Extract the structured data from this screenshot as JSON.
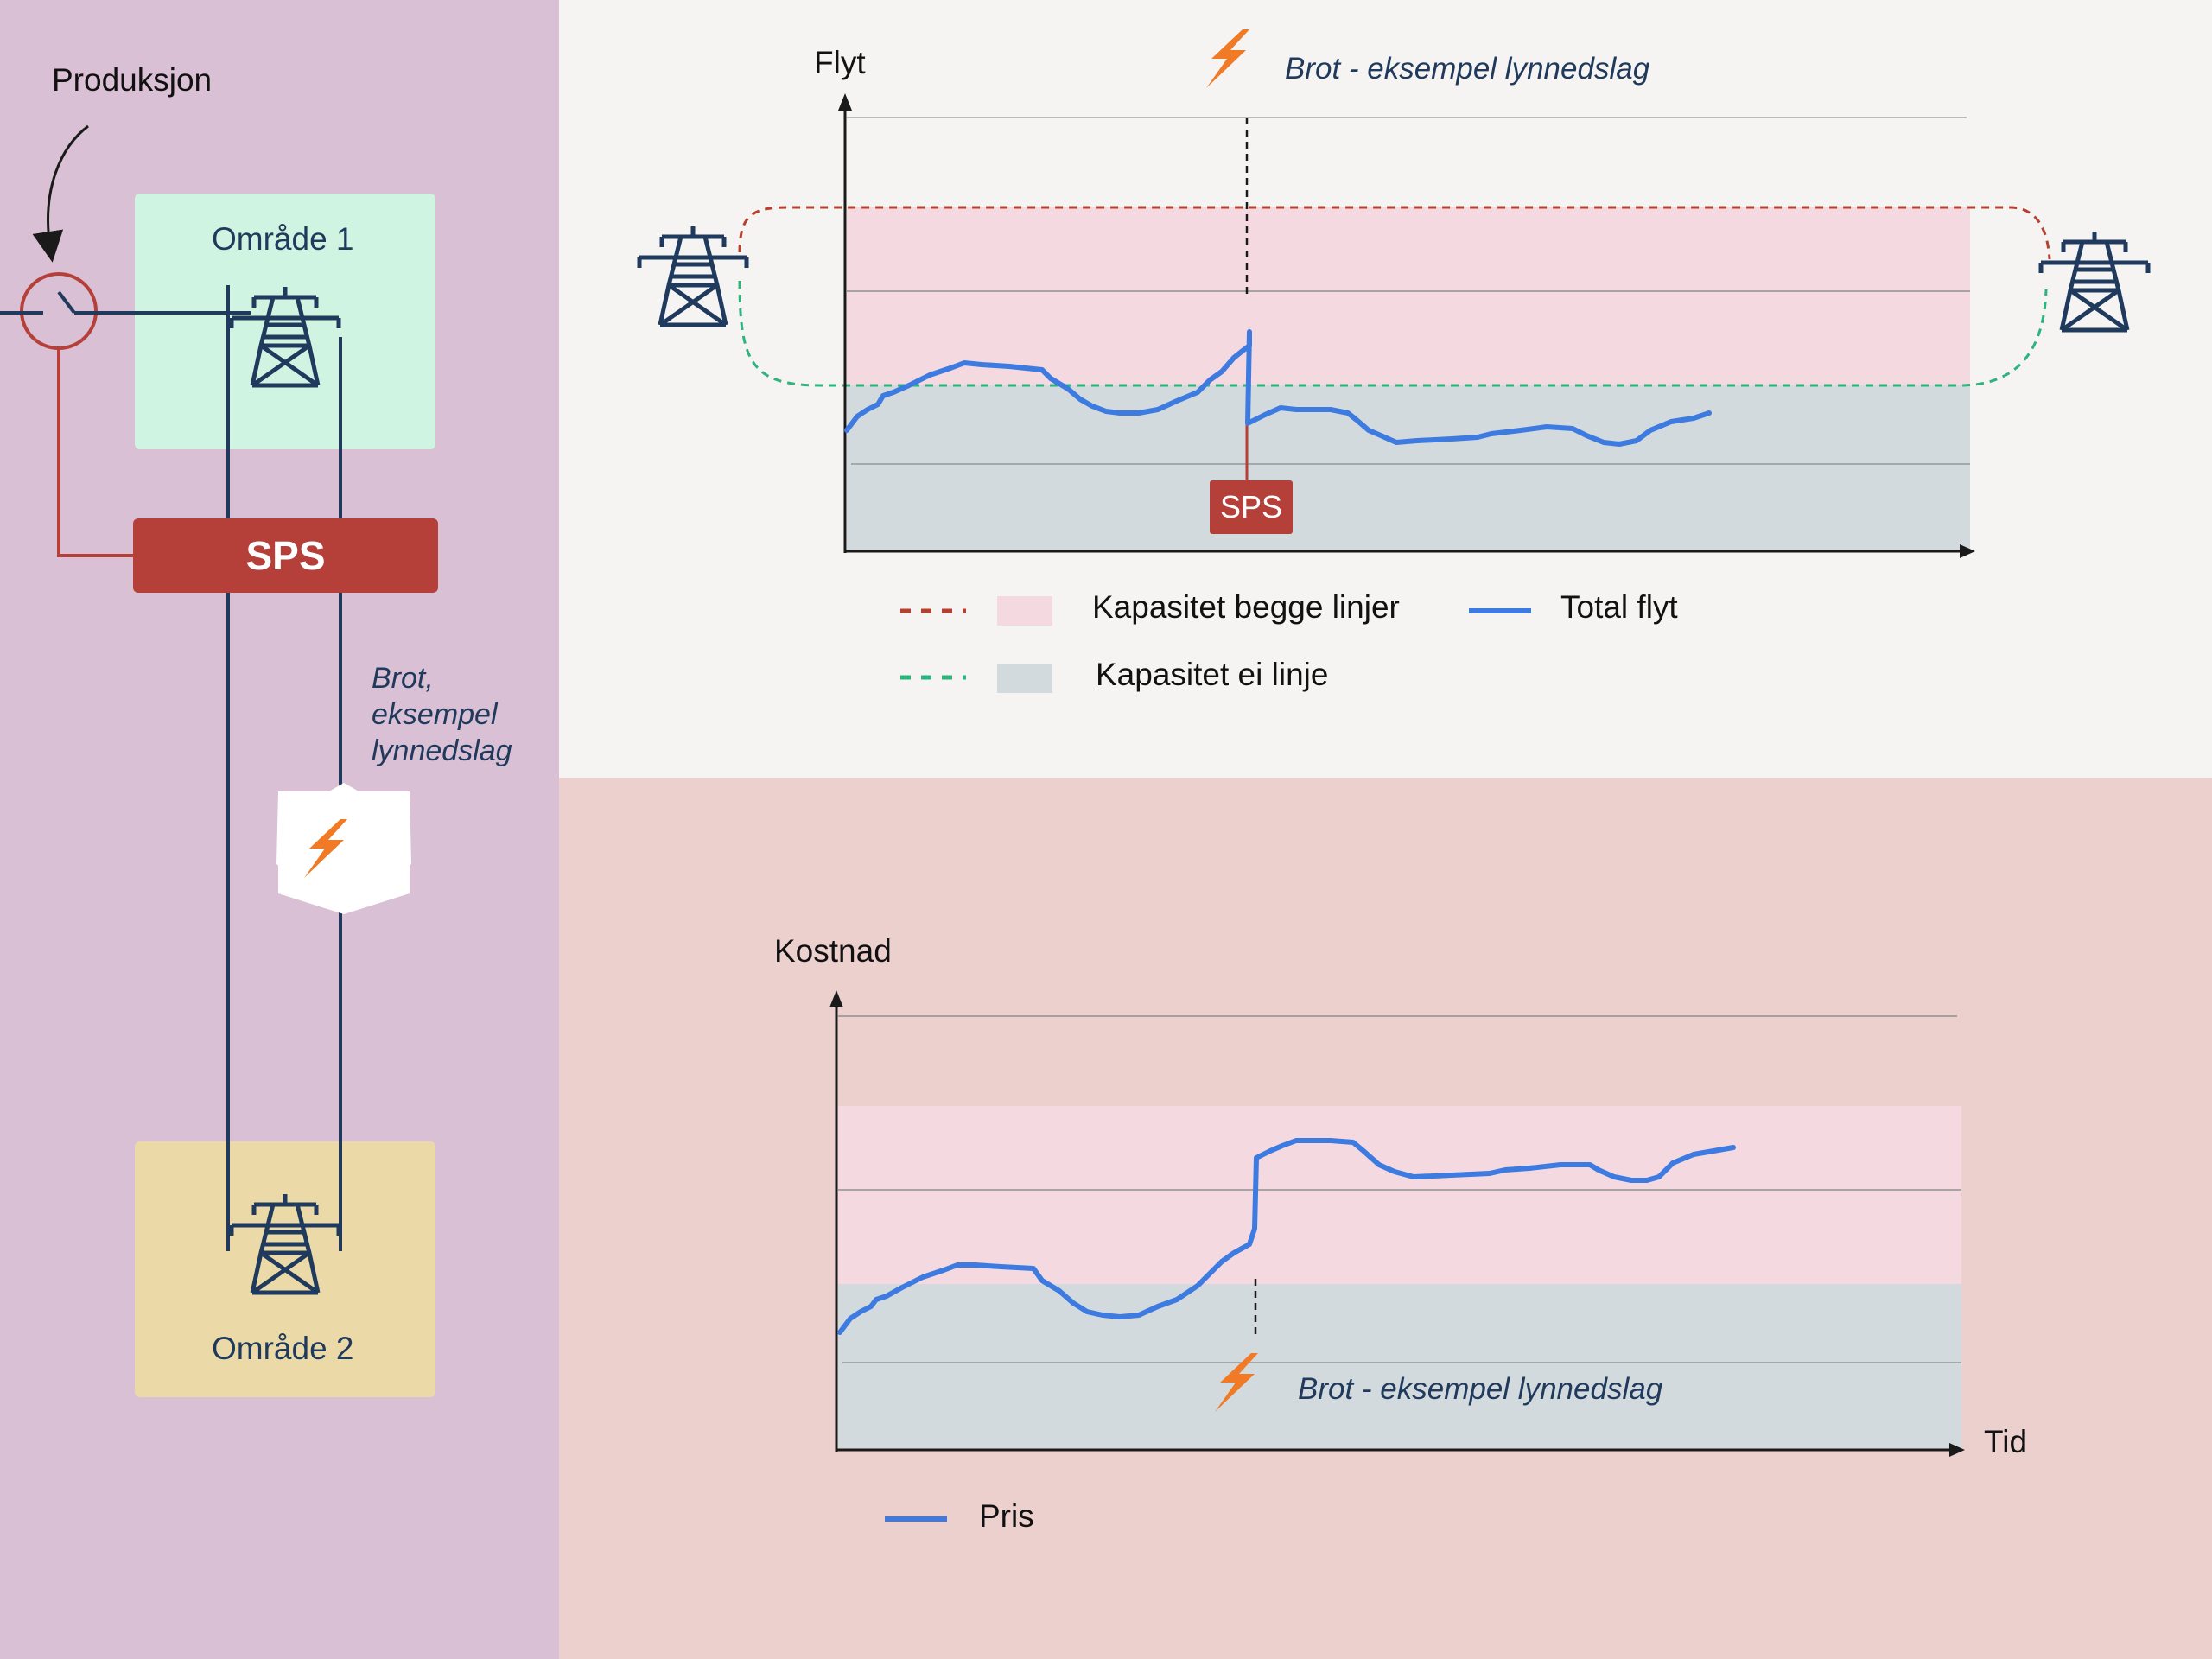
{
  "left": {
    "produksjon_label": "Produksjon",
    "area1_label": "Område 1",
    "area2_label": "Område 2",
    "sps_label": "SPS",
    "break_label_line1": "Brot,",
    "break_label_line2": "eksempel",
    "break_label_line3": "lynnedslag"
  },
  "top_chart": {
    "y_axis_label": "Flyt",
    "event_label": "Brot - eksempel lynnedslag",
    "sps_tag": "SPS",
    "legend": {
      "capacity_both": "Kapasitet begge linjer",
      "capacity_one": "Kapasitet ei linje",
      "total_flow": "Total flyt"
    }
  },
  "bottom_chart": {
    "y_axis_label": "Kostnad",
    "x_axis_label": "Tid",
    "event_label": "Brot - eksempel lynnedslag",
    "legend": {
      "price": "Pris"
    }
  },
  "colors": {
    "left_bg": "#dac0d4",
    "top_bg": "#f5f4f3",
    "bottom_bg": "#ecd0ce",
    "area1": "#cff5e2",
    "area2": "#ebdaa8",
    "sps": "#b5403a",
    "line_blue": "#3d7be0",
    "navy": "#1f3a5c",
    "capacity_both_fill": "#f4d9e1",
    "capacity_one_fill": "#d2dadd",
    "capacity_both_dash": "#b5402f",
    "capacity_one_dash": "#2bb47c",
    "bolt": "#f07a26"
  }
}
